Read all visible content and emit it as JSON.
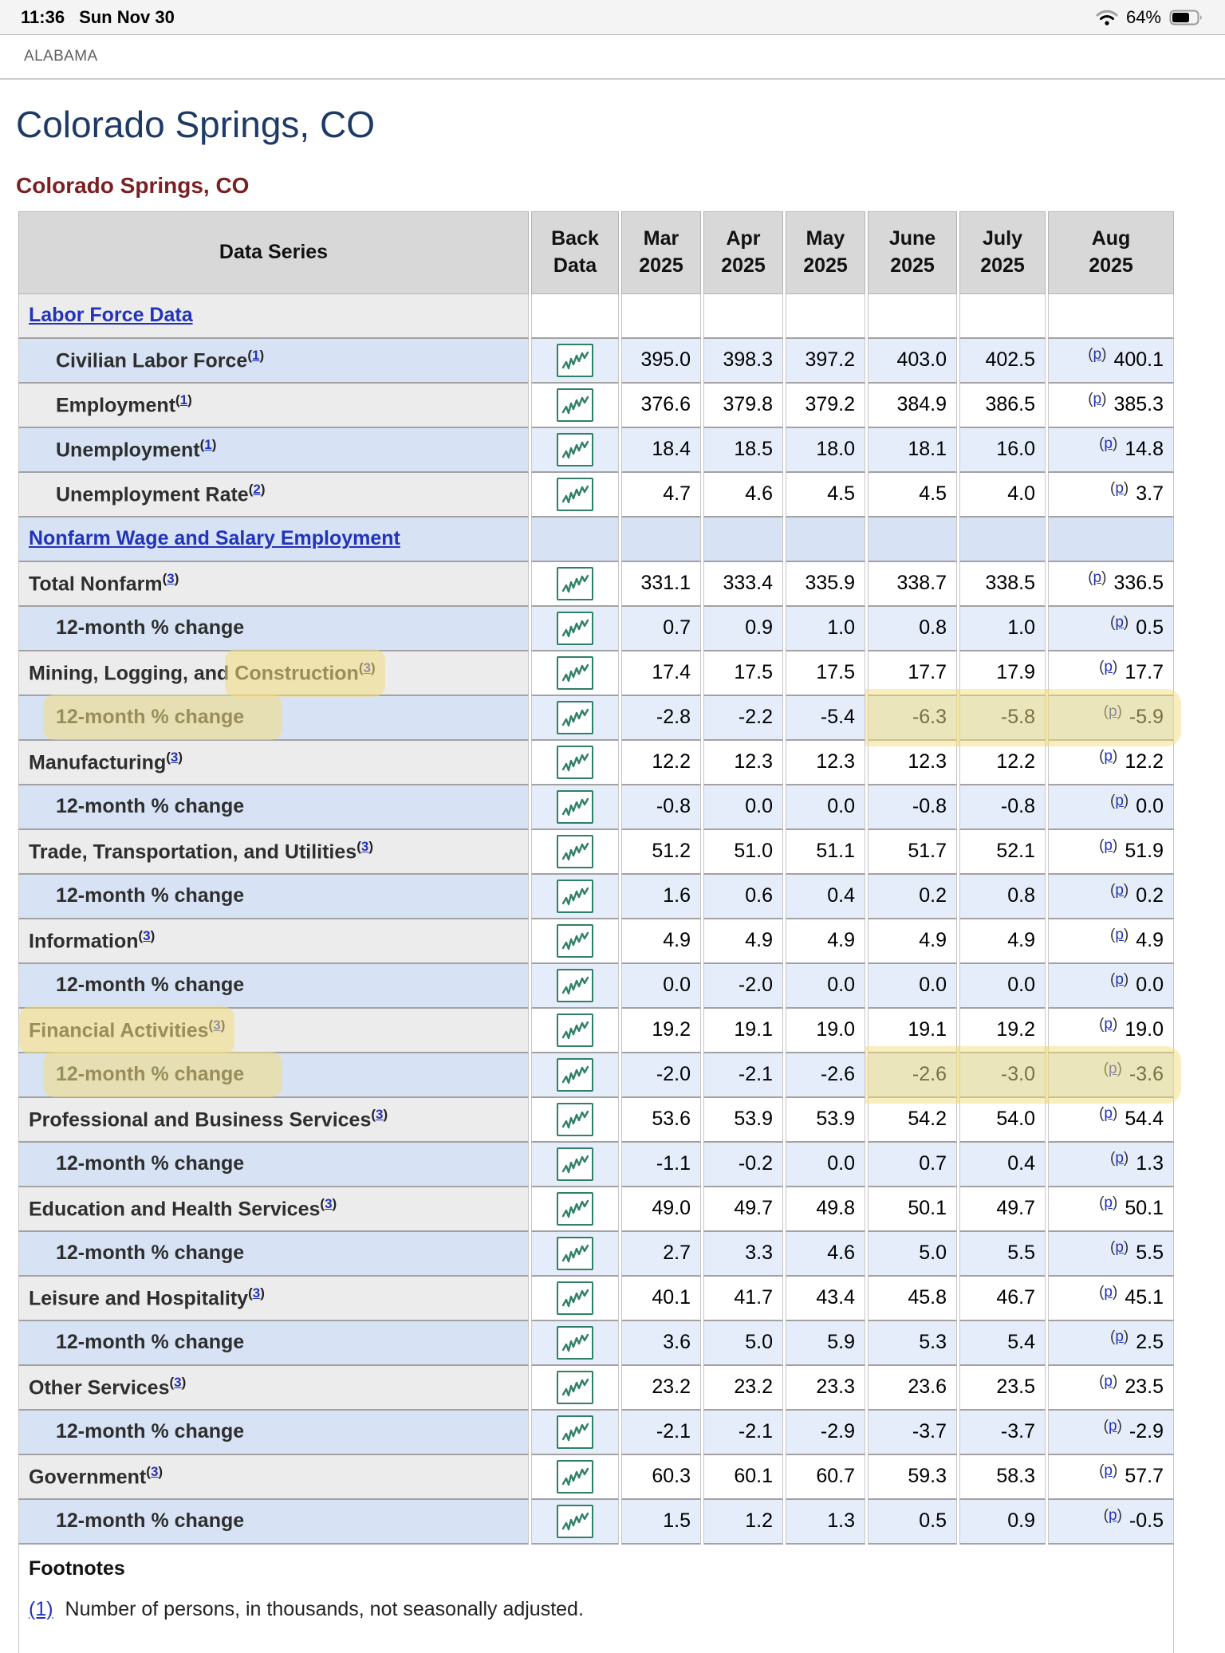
{
  "status_bar": {
    "time": "11:36",
    "date": "Sun Nov 30",
    "battery_pct": "64%"
  },
  "tab_bar": {
    "title": "ALABAMA"
  },
  "page": {
    "title": "Colorado Springs, CO",
    "subtitle": "Colorado Springs, CO"
  },
  "table": {
    "headers": {
      "data_series": "Data Series",
      "back_data": {
        "l1": "Back",
        "l2": "Data"
      },
      "months": [
        {
          "l1": "Mar",
          "l2": "2025"
        },
        {
          "l1": "Apr",
          "l2": "2025"
        },
        {
          "l1": "May",
          "l2": "2025"
        },
        {
          "l1": "June",
          "l2": "2025"
        },
        {
          "l1": "July",
          "l2": "2025"
        },
        {
          "l1": "Aug",
          "l2": "2025"
        }
      ]
    },
    "p_note": "p",
    "rows": [
      {
        "type": "section",
        "pre": "Labor Force Data"
      },
      {
        "type": "data",
        "pre": "Civilian Labor Force",
        "fn": "1",
        "indent": 1,
        "values": [
          "395.0",
          "398.3",
          "397.2",
          "403.0",
          "402.5",
          "400.1"
        ]
      },
      {
        "type": "data",
        "pre": "Employment",
        "fn": "1",
        "indent": 1,
        "values": [
          "376.6",
          "379.8",
          "379.2",
          "384.9",
          "386.5",
          "385.3"
        ]
      },
      {
        "type": "data",
        "pre": "Unemployment",
        "fn": "1",
        "indent": 1,
        "values": [
          "18.4",
          "18.5",
          "18.0",
          "18.1",
          "16.0",
          "14.8"
        ]
      },
      {
        "type": "data",
        "pre": "Unemployment Rate",
        "fn": "2",
        "indent": 1,
        "values": [
          "4.7",
          "4.6",
          "4.5",
          "4.5",
          "4.0",
          "3.7"
        ]
      },
      {
        "type": "section",
        "pre": "Nonfarm Wage and Salary Employment"
      },
      {
        "type": "data",
        "pre": "Total Nonfarm",
        "fn": "3",
        "values": [
          "331.1",
          "333.4",
          "335.9",
          "338.7",
          "338.5",
          "336.5"
        ]
      },
      {
        "type": "data",
        "pre": "12-month % change",
        "indent": 1,
        "values": [
          "0.7",
          "0.9",
          "1.0",
          "0.8",
          "1.0",
          "0.5"
        ]
      },
      {
        "type": "data",
        "pre": "Mining, Logging, and ",
        "hl": "Construction",
        "fn": "3",
        "values": [
          "17.4",
          "17.5",
          "17.5",
          "17.7",
          "17.9",
          "17.7"
        ]
      },
      {
        "type": "data",
        "hl": "12-month % change",
        "hl_wide": true,
        "indent": 1,
        "hl_from": 3,
        "values": [
          "-2.8",
          "-2.2",
          "-5.4",
          "-6.3",
          "-5.8",
          "-5.9"
        ]
      },
      {
        "type": "data",
        "pre": "Manufacturing",
        "fn": "3",
        "values": [
          "12.2",
          "12.3",
          "12.3",
          "12.3",
          "12.2",
          "12.2"
        ]
      },
      {
        "type": "data",
        "pre": "12-month % change",
        "indent": 1,
        "values": [
          "-0.8",
          "0.0",
          "0.0",
          "-0.8",
          "-0.8",
          "0.0"
        ]
      },
      {
        "type": "data",
        "pre": "Trade, Transportation, and Utilities",
        "fn": "3",
        "values": [
          "51.2",
          "51.0",
          "51.1",
          "51.7",
          "52.1",
          "51.9"
        ]
      },
      {
        "type": "data",
        "pre": "12-month % change",
        "indent": 1,
        "values": [
          "1.6",
          "0.6",
          "0.4",
          "0.2",
          "0.8",
          "0.2"
        ]
      },
      {
        "type": "data",
        "pre": "Information",
        "fn": "3",
        "values": [
          "4.9",
          "4.9",
          "4.9",
          "4.9",
          "4.9",
          "4.9"
        ]
      },
      {
        "type": "data",
        "pre": "12-month % change",
        "indent": 1,
        "values": [
          "0.0",
          "-2.0",
          "0.0",
          "0.0",
          "0.0",
          "0.0"
        ]
      },
      {
        "type": "data",
        "hl": "Financial Activities",
        "fn": "3",
        "values": [
          "19.2",
          "19.1",
          "19.0",
          "19.1",
          "19.2",
          "19.0"
        ]
      },
      {
        "type": "data",
        "hl": "12-month % change",
        "hl_wide": true,
        "indent": 1,
        "hl_from": 3,
        "values": [
          "-2.0",
          "-2.1",
          "-2.6",
          "-2.6",
          "-3.0",
          "-3.6"
        ]
      },
      {
        "type": "data",
        "pre": "Professional and Business Services",
        "fn": "3",
        "values": [
          "53.6",
          "53.9",
          "53.9",
          "54.2",
          "54.0",
          "54.4"
        ]
      },
      {
        "type": "data",
        "pre": "12-month % change",
        "indent": 1,
        "values": [
          "-1.1",
          "-0.2",
          "0.0",
          "0.7",
          "0.4",
          "1.3"
        ]
      },
      {
        "type": "data",
        "pre": "Education and Health Services",
        "fn": "3",
        "values": [
          "49.0",
          "49.7",
          "49.8",
          "50.1",
          "49.7",
          "50.1"
        ]
      },
      {
        "type": "data",
        "pre": "12-month % change",
        "indent": 1,
        "values": [
          "2.7",
          "3.3",
          "4.6",
          "5.0",
          "5.5",
          "5.5"
        ]
      },
      {
        "type": "data",
        "pre": "Leisure and Hospitality",
        "fn": "3",
        "values": [
          "40.1",
          "41.7",
          "43.4",
          "45.8",
          "46.7",
          "45.1"
        ]
      },
      {
        "type": "data",
        "pre": "12-month % change",
        "indent": 1,
        "values": [
          "3.6",
          "5.0",
          "5.9",
          "5.3",
          "5.4",
          "2.5"
        ]
      },
      {
        "type": "data",
        "pre": "Other Services",
        "fn": "3",
        "values": [
          "23.2",
          "23.2",
          "23.3",
          "23.6",
          "23.5",
          "23.5"
        ]
      },
      {
        "type": "data",
        "pre": "12-month % change",
        "indent": 1,
        "values": [
          "-2.1",
          "-2.1",
          "-2.9",
          "-3.7",
          "-3.7",
          "-2.9"
        ]
      },
      {
        "type": "data",
        "pre": "Government",
        "fn": "3",
        "values": [
          "60.3",
          "60.1",
          "60.7",
          "59.3",
          "58.3",
          "57.7"
        ]
      },
      {
        "type": "data",
        "pre": "12-month % change",
        "indent": 1,
        "values": [
          "1.5",
          "1.2",
          "1.3",
          "0.5",
          "0.9",
          "-0.5"
        ]
      }
    ],
    "footnotes": {
      "title": "Footnotes",
      "items": [
        {
          "ref": "(1)",
          "text": "Number of persons, in thousands, not seasonally adjusted."
        }
      ]
    }
  }
}
